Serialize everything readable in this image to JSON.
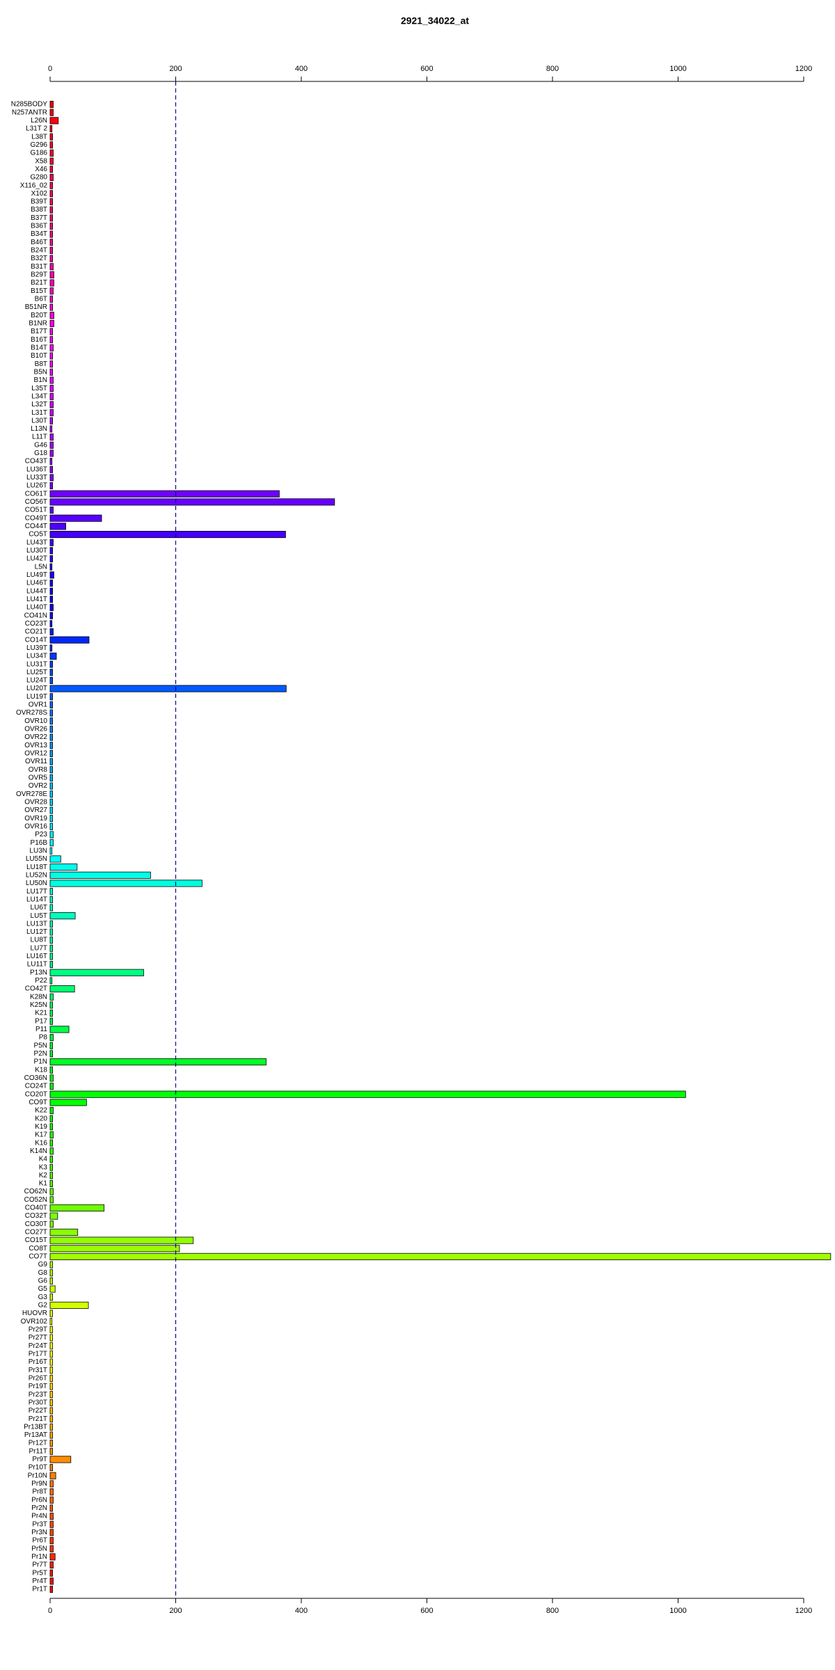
{
  "chart_data": {
    "type": "bar",
    "orientation": "horizontal",
    "title": "2921_34022_at",
    "categories": [
      "N285BODY",
      "N257ANTR",
      "L26N",
      "L31T 2",
      "L38T",
      "G296",
      "G186",
      "X58",
      "X46",
      "G280",
      "X116_02",
      "X102",
      "B39T",
      "B38T",
      "B37T",
      "B36T",
      "B34T",
      "B46T",
      "B24T",
      "B32T",
      "B31T",
      "B29T",
      "B21T",
      "B15T",
      "B6T",
      "B51NR",
      "B20T",
      "B1NR",
      "B17T",
      "B16T",
      "B14T",
      "B10T",
      "B8T",
      "B5N",
      "B1N",
      "L35T",
      "L34T",
      "L32T",
      "L31T",
      "L30T",
      "L13N",
      "L11T",
      "G46",
      "G18",
      "CO43T",
      "LU36T",
      "LU33T",
      "LU26T",
      "CO61T",
      "CO56T",
      "CO51T",
      "CO49T",
      "CO44T",
      "CO5T",
      "LU43T",
      "LU30T",
      "LU42T",
      "L5N",
      "LU49T",
      "LU46T",
      "LU44T",
      "LU41T",
      "LU40T",
      "CO41N",
      "CO23T",
      "CO21T",
      "CO14T",
      "LU39T",
      "LU34T",
      "LU31T",
      "LU25T",
      "LU24T",
      "LU20T",
      "LU19T",
      "OVR1",
      "OVR278S",
      "OVR10",
      "OVR26",
      "OVR22",
      "OVR13",
      "OVR12",
      "OVR11",
      "OVR8",
      "OVR5",
      "OVR2",
      "OVR278E",
      "OVR28",
      "OVR27",
      "OVR19",
      "OVR16",
      "P23",
      "P16B",
      "LU3N",
      "LU55N",
      "LU18T",
      "LU52N",
      "LU50N",
      "LU17T",
      "LU14T",
      "LU6T",
      "LU5T",
      "LU13T",
      "LU12T",
      "LU8T",
      "LU7T",
      "LU16T",
      "LU11T",
      "P13N",
      "P22",
      "CO42T",
      "K28N",
      "K25N",
      "K21",
      "P17",
      "P11",
      "P8",
      "P5N",
      "P2N",
      "P1N",
      "K18",
      "CO36N",
      "CO24T",
      "CO20T",
      "CO9T",
      "K22",
      "K20",
      "K19",
      "K17",
      "K16",
      "K14N",
      "K4",
      "K3",
      "K2",
      "K1",
      "CO62N",
      "CO52N",
      "CO40T",
      "CO32T",
      "CO30T",
      "CO27T",
      "CO15T",
      "CO8T",
      "CO7T",
      "G9",
      "G8",
      "G6",
      "G5",
      "G3",
      "G2",
      "HUOVR",
      "OVR102",
      "Pr29T",
      "Pr27T",
      "Pr24T",
      "Pr17T",
      "Pr16T",
      "Pr31T",
      "Pr26T",
      "Pr19T",
      "Pr23T",
      "Pr30T",
      "Pr22T",
      "Pr21T",
      "Pr13BT",
      "Pr13AT",
      "Pr12T",
      "Pr11T",
      "Pr9T",
      "Pr10T",
      "Pr10N",
      "Pr9N",
      "Pr8T",
      "Pr6N",
      "Pr2N",
      "Pr4N",
      "Pr3T",
      "Pr3N",
      "Pr6T",
      "Pr5N",
      "Pr1N",
      "Pr7T",
      "Pr5T",
      "Pr4T",
      "Pr1T"
    ],
    "values": [
      5,
      5,
      13,
      3,
      4,
      4,
      5,
      5,
      4,
      5,
      4,
      4,
      4,
      4,
      4,
      4,
      4,
      4,
      4,
      4,
      5,
      6,
      6,
      5,
      4,
      4,
      6,
      6,
      4,
      4,
      5,
      4,
      4,
      4,
      5,
      5,
      5,
      5,
      5,
      4,
      3,
      5,
      5,
      5,
      3,
      4,
      5,
      4,
      365,
      453,
      5,
      82,
      25,
      375,
      5,
      4,
      4,
      3,
      6,
      4,
      4,
      4,
      5,
      4,
      3,
      5,
      62,
      3,
      10,
      4,
      4,
      4,
      376,
      4,
      4,
      4,
      4,
      4,
      4,
      4,
      4,
      4,
      4,
      4,
      4,
      4,
      4,
      4,
      4,
      4,
      5,
      5,
      3,
      17,
      43,
      160,
      242,
      4,
      4,
      4,
      40,
      4,
      4,
      4,
      4,
      4,
      4,
      149,
      3,
      39,
      5,
      4,
      4,
      4,
      30,
      5,
      4,
      4,
      344,
      4,
      5,
      5,
      1012,
      58,
      5,
      4,
      4,
      5,
      4,
      5,
      4,
      4,
      4,
      4,
      5,
      5,
      86,
      12,
      5,
      44,
      228,
      206,
      1243,
      4,
      4,
      4,
      8,
      4,
      61,
      4,
      3,
      4,
      4,
      4,
      4,
      4,
      4,
      4,
      4,
      4,
      4,
      4,
      4,
      4,
      4,
      4,
      4,
      33,
      4,
      9,
      5,
      5,
      5,
      4,
      5,
      5,
      5,
      5,
      5,
      8,
      5,
      4,
      5,
      4
    ],
    "colors": [
      "#ff0000",
      "#ff0008",
      "#ff0011",
      "#ff0019",
      "#ff0021",
      "#ff002a",
      "#ff0032",
      "#ff003a",
      "#ff0043",
      "#ff004b",
      "#ff0053",
      "#ff005b",
      "#ff0064",
      "#ff006c",
      "#ff0074",
      "#ff007d",
      "#ff0085",
      "#ff008d",
      "#ff0096",
      "#ff009e",
      "#ff00a6",
      "#ff00af",
      "#ff00b7",
      "#ff00bf",
      "#ff00c8",
      "#ff00d0",
      "#ff00d8",
      "#ff00e0",
      "#ff00e9",
      "#ff00f1",
      "#ff00f9",
      "#fc00ff",
      "#f400ff",
      "#ec00ff",
      "#e300ff",
      "#db00ff",
      "#d300ff",
      "#ca00ff",
      "#c200ff",
      "#ba00ff",
      "#b100ff",
      "#a900ff",
      "#a100ff",
      "#9800ff",
      "#9000ff",
      "#8800ff",
      "#7f00ff",
      "#7700ff",
      "#6f00ff",
      "#6700ff",
      "#5e00ff",
      "#5600ff",
      "#4e00ff",
      "#4500ff",
      "#3d00ff",
      "#3500ff",
      "#2c00ff",
      "#2400ff",
      "#1c00ff",
      "#1300ff",
      "#0b00ff",
      "#0300ff",
      "#0005ff",
      "#000eff",
      "#0016ff",
      "#001eff",
      "#0027ff",
      "#002fff",
      "#0037ff",
      "#0040ff",
      "#0048ff",
      "#0050ff",
      "#0059ff",
      "#0061ff",
      "#0069ff",
      "#0072ff",
      "#007aff",
      "#0082ff",
      "#008bff",
      "#0093ff",
      "#009bff",
      "#00a4ff",
      "#00acff",
      "#00b4ff",
      "#00bcff",
      "#00c5ff",
      "#00cdff",
      "#00d5ff",
      "#00deff",
      "#00e6ff",
      "#00eeff",
      "#00f7ff",
      "#00ffff",
      "#00fff7",
      "#00ffee",
      "#00ffe6",
      "#00ffde",
      "#00ffd5",
      "#00ffcd",
      "#00ffc5",
      "#00ffbd",
      "#00ffb4",
      "#00ffac",
      "#00ffa4",
      "#00ff9b",
      "#00ff93",
      "#00ff8b",
      "#00ff82",
      "#00ff7a",
      "#00ff72",
      "#00ff69",
      "#00ff61",
      "#00ff59",
      "#00ff50",
      "#00ff48",
      "#00ff40",
      "#00ff37",
      "#00ff2f",
      "#00ff27",
      "#00ff1f",
      "#00ff16",
      "#00ff0e",
      "#00ff06",
      "#03ff00",
      "#0bff00",
      "#13ff00",
      "#1cff00",
      "#24ff00",
      "#2cff00",
      "#35ff00",
      "#3dff00",
      "#45ff00",
      "#4eff00",
      "#56ff00",
      "#5eff00",
      "#67ff00",
      "#6fff00",
      "#77ff00",
      "#7fff00",
      "#88ff00",
      "#90ff00",
      "#98ff00",
      "#a1ff00",
      "#a9ff00",
      "#b1ff00",
      "#baff00",
      "#c2ff00",
      "#caff00",
      "#d3ff00",
      "#dbff00",
      "#e3ff00",
      "#ecff00",
      "#f4ff00",
      "#fcff00",
      "#fff900",
      "#fff100",
      "#ffe900",
      "#ffe000",
      "#ffd800",
      "#ffd000",
      "#ffc800",
      "#ffbf00",
      "#ffb700",
      "#ffaf00",
      "#ffa600",
      "#ff9e00",
      "#ff9600",
      "#ff8d00",
      "#ff8500",
      "#ff7d00",
      "#ff7400",
      "#ff6c00",
      "#ff6400",
      "#ff5b00",
      "#ff5300",
      "#ff4b00",
      "#ff4300",
      "#ff3a00",
      "#ff3200",
      "#ff2a00",
      "#ff2100",
      "#ff1900",
      "#ff1100",
      "#ff0800"
    ],
    "xlim": [
      0,
      1200
    ],
    "xticks": [
      0,
      200,
      400,
      600,
      800,
      1000,
      1200
    ],
    "reference_line": 200,
    "reference_line_color": "#00008b"
  }
}
